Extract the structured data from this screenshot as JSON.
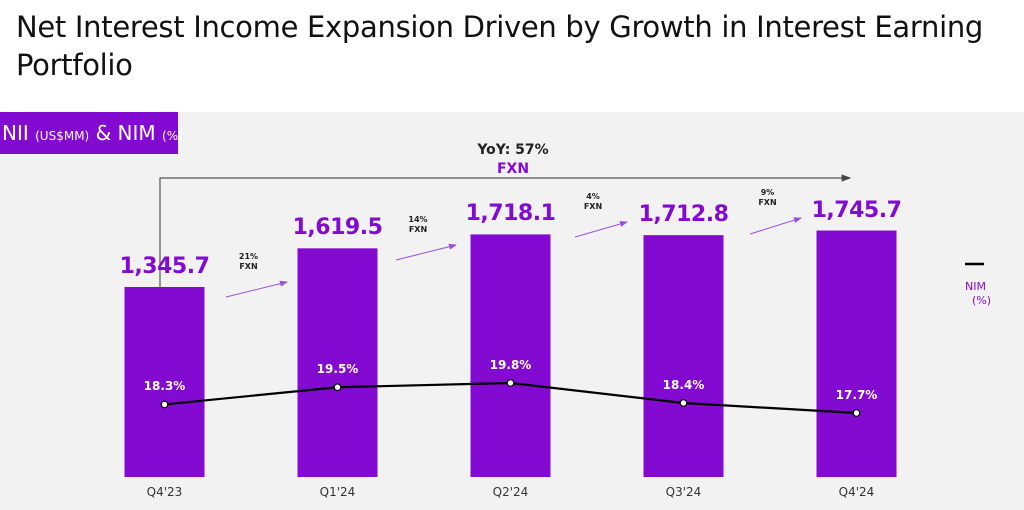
{
  "title": "Net Interest Income Expansion Driven by Growth in Interest Earning Portfolio",
  "tag": {
    "main1": "NII ",
    "unit1": "(US$MM)",
    "main2": " & NIM ",
    "unit2": "(%)"
  },
  "colors": {
    "bar": "#820ad1",
    "line": "#000000",
    "background": "#f2f2f2"
  },
  "chart_data": {
    "type": "bar",
    "categories": [
      "Q4'23",
      "Q1'24",
      "Q2'24",
      "Q3'24",
      "Q4'24"
    ],
    "series": [
      {
        "name": "NII (US$MM)",
        "type": "bar",
        "values": [
          1345.7,
          1619.5,
          1718.1,
          1712.8,
          1745.7
        ],
        "labels": [
          "1,345.7",
          "1,619.5",
          "1,718.1",
          "1,712.8",
          "1,745.7"
        ]
      },
      {
        "name": "NIM (%)",
        "type": "line",
        "values": [
          18.3,
          19.5,
          19.8,
          18.4,
          17.7
        ],
        "labels": [
          "18.3%",
          "19.5%",
          "19.8%",
          "18.4%",
          "17.7%"
        ]
      }
    ],
    "growth": [
      {
        "pct": "21%",
        "note": "FXN"
      },
      {
        "pct": "14%",
        "note": "FXN"
      },
      {
        "pct": "4%",
        "note": "FXN"
      },
      {
        "pct": "9%",
        "note": "FXN"
      }
    ],
    "yoy": {
      "label": "YoY: 57%",
      "note": "FXN"
    },
    "legend": {
      "name": "NIM",
      "unit": "(%)",
      "placement": "right"
    }
  }
}
